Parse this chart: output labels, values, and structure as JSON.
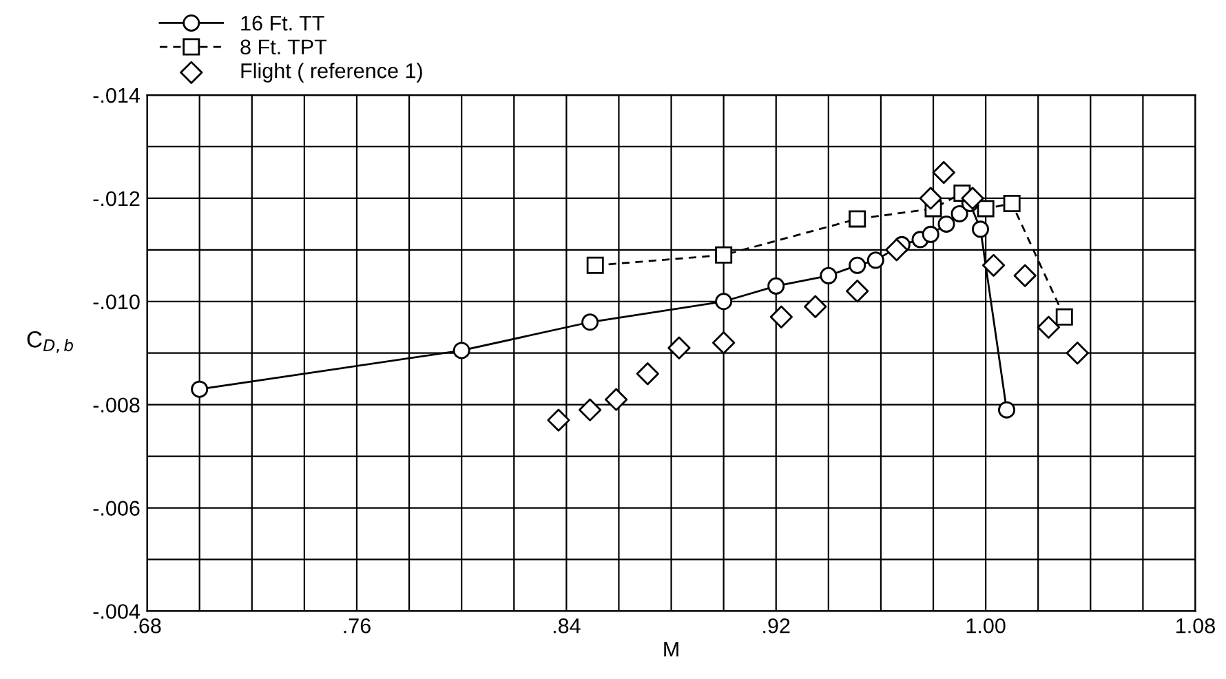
{
  "chart_data": {
    "type": "line",
    "xlabel": "M",
    "ylabel": "C$_{D,b}$",
    "legend": "top left",
    "grid": true,
    "xlim": [
      0.68,
      1.08
    ],
    "ylim": [
      -0.004,
      -0.014
    ],
    "xticks": [
      {
        "value": 0.68,
        "label": ".68"
      },
      {
        "value": 0.7,
        "label": null
      },
      {
        "value": 0.72,
        "label": null
      },
      {
        "value": 0.74,
        "label": null
      },
      {
        "value": 0.76,
        "label": ".76"
      },
      {
        "value": 0.78,
        "label": null
      },
      {
        "value": 0.8,
        "label": null
      },
      {
        "value": 0.82,
        "label": null
      },
      {
        "value": 0.84,
        "label": ".84"
      },
      {
        "value": 0.86,
        "label": null
      },
      {
        "value": 0.88,
        "label": null
      },
      {
        "value": 0.9,
        "label": null
      },
      {
        "value": 0.92,
        "label": ".92"
      },
      {
        "value": 0.94,
        "label": null
      },
      {
        "value": 0.96,
        "label": null
      },
      {
        "value": 0.98,
        "label": null
      },
      {
        "value": 1.0,
        "label": "1.00"
      },
      {
        "value": 1.02,
        "label": null
      },
      {
        "value": 1.04,
        "label": null
      },
      {
        "value": 1.06,
        "label": null
      },
      {
        "value": 1.08,
        "label": "1.08"
      }
    ],
    "yticks": [
      {
        "value": -0.004,
        "label": "-.004"
      },
      {
        "value": -0.005,
        "label": null
      },
      {
        "value": -0.006,
        "label": "-.006"
      },
      {
        "value": -0.007,
        "label": null
      },
      {
        "value": -0.008,
        "label": "-.008"
      },
      {
        "value": -0.009,
        "label": null
      },
      {
        "value": -0.01,
        "label": "-.010"
      },
      {
        "value": -0.011,
        "label": null
      },
      {
        "value": -0.012,
        "label": "-.012"
      },
      {
        "value": -0.013,
        "label": null
      },
      {
        "value": -0.014,
        "label": "-.014"
      }
    ],
    "series": [
      {
        "name": "16 Ft. TT",
        "marker": "circle",
        "line_style": "solid",
        "color": "#000000",
        "x": [
          0.7,
          0.8,
          0.849,
          0.9,
          0.92,
          0.94,
          0.951,
          0.958,
          0.968,
          0.975,
          0.979,
          0.985,
          0.99,
          0.994,
          0.998,
          1.008
        ],
        "values": [
          -0.0083,
          -0.00905,
          -0.0096,
          -0.01,
          -0.0103,
          -0.0105,
          -0.0107,
          -0.0108,
          -0.0111,
          -0.0112,
          -0.0113,
          -0.0115,
          -0.0117,
          -0.0119,
          -0.0114,
          -0.0079
        ]
      },
      {
        "name": "8 Ft. TPT",
        "marker": "square",
        "line_style": "dashed",
        "color": "#000000",
        "x": [
          0.851,
          0.9,
          0.951,
          0.98,
          0.991,
          1.0,
          1.01,
          1.03
        ],
        "values": [
          -0.0107,
          -0.0109,
          -0.0116,
          -0.0118,
          -0.0121,
          -0.0118,
          -0.0119,
          -0.0097
        ]
      },
      {
        "name": "Flight ( reference 1)",
        "type": "scatter",
        "marker": "diamond",
        "color": "#000000",
        "x": [
          0.837,
          0.849,
          0.859,
          0.871,
          0.883,
          0.9,
          0.922,
          0.935,
          0.951,
          0.966,
          0.979,
          0.984,
          0.995,
          1.003,
          1.015,
          1.024,
          1.035
        ],
        "values": [
          -0.0077,
          -0.0079,
          -0.0081,
          -0.0086,
          -0.0091,
          -0.0092,
          -0.0097,
          -0.0099,
          -0.0102,
          -0.011,
          -0.012,
          -0.0125,
          -0.012,
          -0.0107,
          -0.0105,
          -0.0095,
          -0.009
        ]
      }
    ]
  }
}
